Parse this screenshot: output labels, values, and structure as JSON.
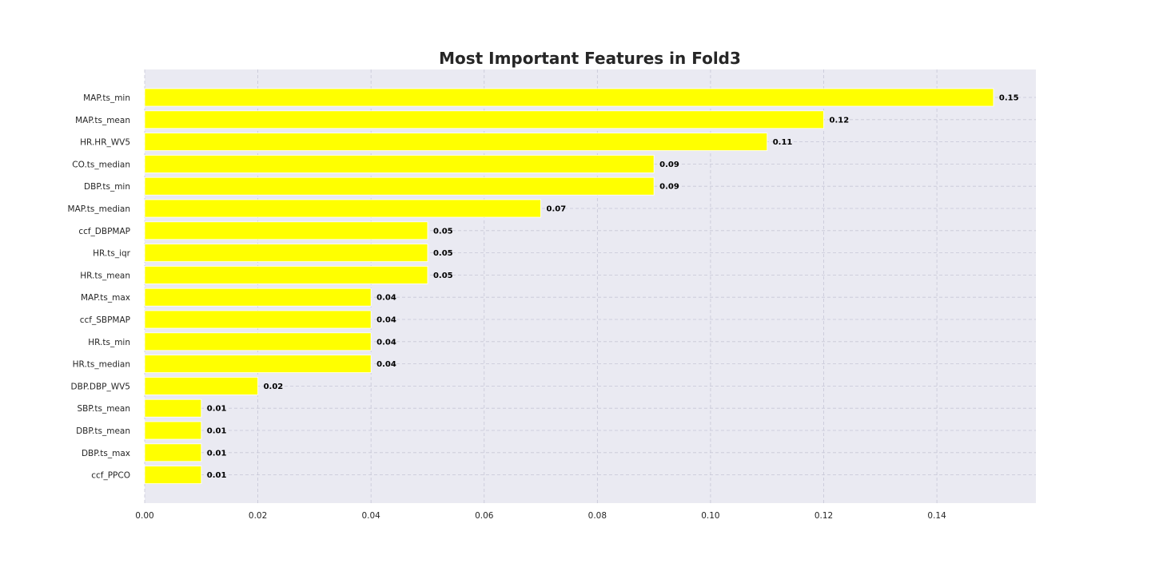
{
  "chart_data": {
    "type": "bar",
    "orientation": "horizontal",
    "title": "Most Important Features in Fold3",
    "xlabel": "",
    "ylabel": "",
    "xlim": [
      0.0,
      0.1575
    ],
    "xticks": [
      "0.00",
      "0.02",
      "0.04",
      "0.06",
      "0.08",
      "0.10",
      "0.12",
      "0.14"
    ],
    "grid": true,
    "legend": "none",
    "bar_color": "#ffff00",
    "background_color": "#eaeaf2",
    "categories": [
      "MAP.ts_min",
      "MAP.ts_mean",
      "HR.HR_WV5",
      "CO.ts_median",
      "DBP.ts_min",
      "MAP.ts_median",
      "ccf_DBPMAP",
      "HR.ts_iqr",
      "HR.ts_mean",
      "MAP.ts_max",
      "ccf_SBPMAP",
      "HR.ts_min",
      "HR.ts_median",
      "DBP.DBP_WV5",
      "SBP.ts_mean",
      "DBP.ts_mean",
      "DBP.ts_max",
      "ccf_PPCO"
    ],
    "values": [
      0.15,
      0.12,
      0.11,
      0.09,
      0.09,
      0.07,
      0.05,
      0.05,
      0.05,
      0.04,
      0.04,
      0.04,
      0.04,
      0.02,
      0.01,
      0.01,
      0.01,
      0.01
    ],
    "data_labels": [
      "0.15",
      "0.12",
      "0.11",
      "0.09",
      "0.09",
      "0.07",
      "0.05",
      "0.05",
      "0.05",
      "0.04",
      "0.04",
      "0.04",
      "0.04",
      "0.02",
      "0.01",
      "0.01",
      "0.01",
      "0.01"
    ]
  }
}
